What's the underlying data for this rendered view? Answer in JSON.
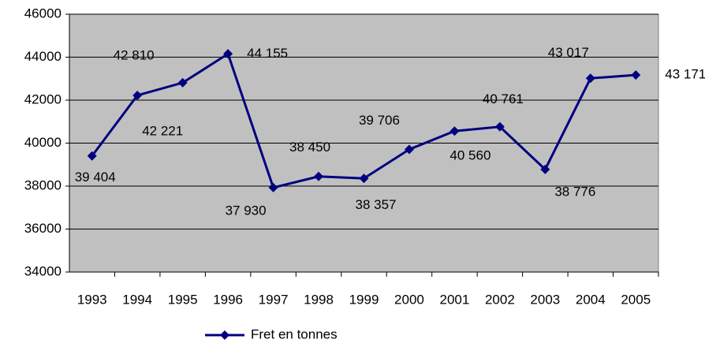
{
  "chart_data": {
    "type": "line",
    "categories": [
      "1993",
      "1994",
      "1995",
      "1996",
      "1997",
      "1998",
      "1999",
      "2000",
      "2001",
      "2002",
      "2003",
      "2004",
      "2005"
    ],
    "series": [
      {
        "name": "Fret en tonnes",
        "color": "#000080",
        "values": [
          39404,
          42221,
          42810,
          44155,
          37930,
          38450,
          38357,
          39706,
          40560,
          40761,
          38776,
          43017,
          43171
        ],
        "value_labels": [
          "39 404",
          "42 221",
          "42 810",
          "44 155",
          "37 930",
          "38 450",
          "38 357",
          "39 706",
          "40 560",
          "40 761",
          "38 776",
          "43 017",
          "43 171"
        ]
      }
    ],
    "ylim": [
      34000,
      46000
    ],
    "yticks": [
      34000,
      36000,
      38000,
      40000,
      42000,
      44000,
      46000
    ],
    "grid": true,
    "legend": "bottom",
    "plot_background": "#c0c0c0"
  }
}
